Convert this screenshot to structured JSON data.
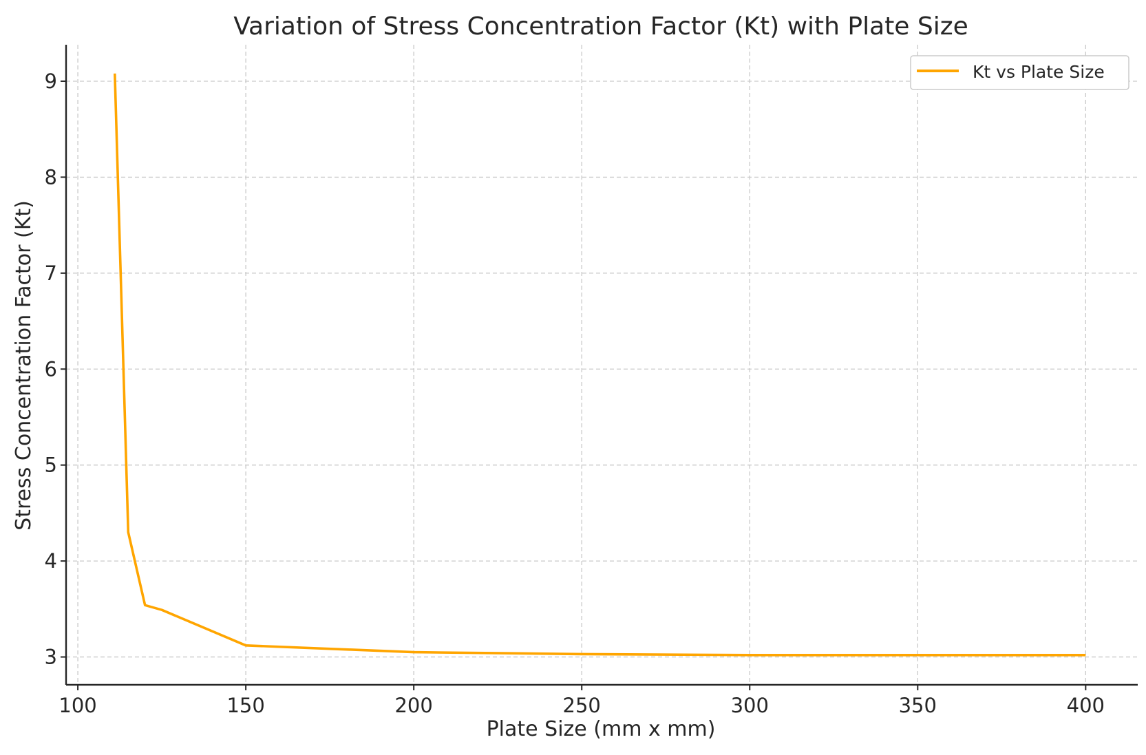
{
  "chart_data": {
    "type": "line",
    "title": "Variation of Stress Concentration Factor (Kt) with Plate Size",
    "xlabel": "Plate Size (mm x mm)",
    "ylabel": "Stress Concentration Factor (Kt)",
    "xlim": [
      96.5,
      415.5
    ],
    "ylim": [
      2.71,
      9.38
    ],
    "xticks": [
      100,
      150,
      200,
      250,
      300,
      350,
      400
    ],
    "yticks": [
      3,
      4,
      5,
      6,
      7,
      8,
      9
    ],
    "xtick_labels": [
      "100",
      "150",
      "200",
      "250",
      "300",
      "350",
      "400"
    ],
    "ytick_labels": [
      "3",
      "4",
      "5",
      "6",
      "7",
      "8",
      "9"
    ],
    "grid": true,
    "legend_position": "top-right",
    "series": [
      {
        "name": "Kt vs Plate Size",
        "color": "#FFA500",
        "x": [
          111,
          115,
          120,
          125,
          150,
          200,
          250,
          300,
          350,
          400
        ],
        "y": [
          9.08,
          4.3,
          3.54,
          3.49,
          3.12,
          3.05,
          3.03,
          3.02,
          3.02,
          3.02
        ]
      }
    ]
  }
}
